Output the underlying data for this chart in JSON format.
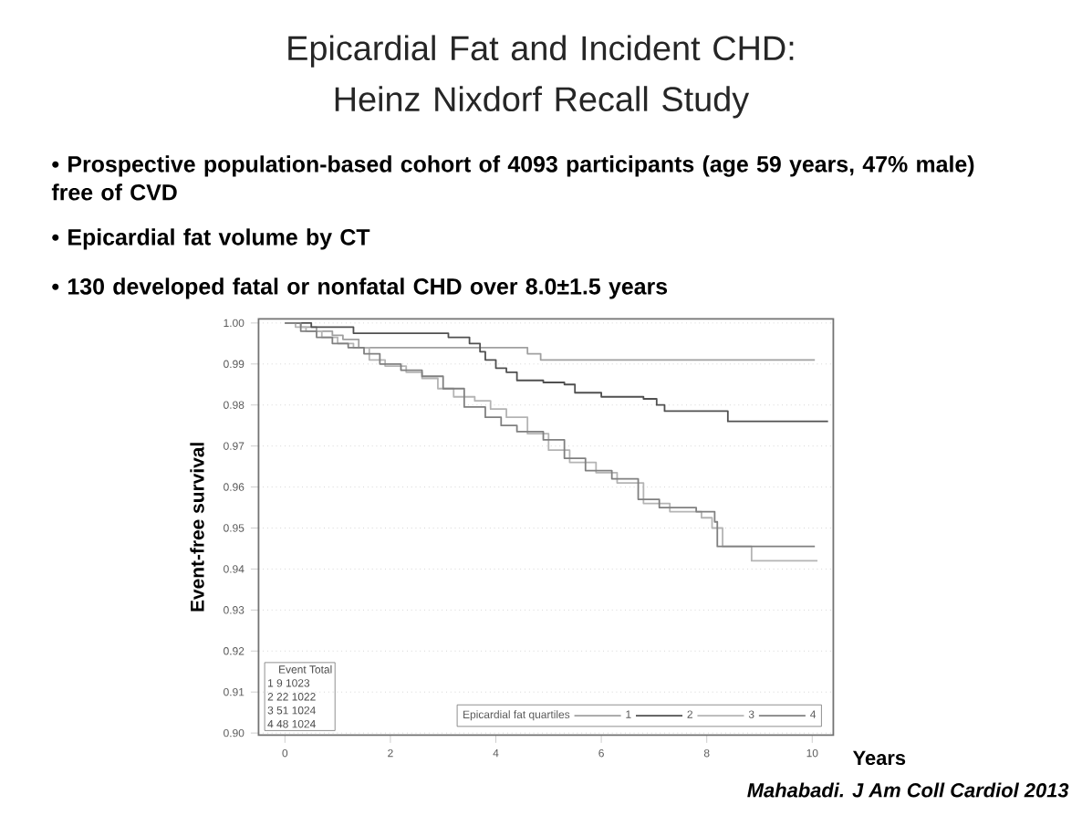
{
  "chart_data": {
    "type": "step",
    "title": "Epicardial Fat and Incident CHD: Heinz Nixdorf Recall Study",
    "xlabel": "Years",
    "ylabel": "Event-free survival",
    "legend_title": "Epicardial fat quartiles",
    "annotations": [
      "• Prospective population-based cohort of 4093 participants (age 59 years, 47% male) free of CVD",
      "• Epicardial fat volume by CT",
      "• 130 developed fatal or nonfatal CHD over 8.0±1.5 years",
      "Event Total",
      "1 9 1023",
      "2 22 1022",
      "3 51 1024",
      "4 48 1024",
      "Mahabadi. J Am Coll Cardiol 2013"
    ],
    "series": [
      {
        "name": "1",
        "color": "#a0a0a0",
        "x": [
          0,
          0.3,
          0.6,
          0.9,
          1.1,
          1.4,
          4.6,
          4.85,
          10.05
        ],
        "values": [
          1.0,
          0.999,
          0.998,
          0.997,
          0.996,
          0.994,
          0.9925,
          0.991,
          0.991
        ]
      },
      {
        "name": "2",
        "color": "#505050",
        "x": [
          0,
          0.5,
          1.3,
          3.1,
          3.5,
          3.7,
          3.8,
          4.0,
          4.2,
          4.4,
          4.9,
          5.3,
          5.5,
          6.0,
          6.8,
          7.05,
          7.2,
          8.4,
          10.3
        ],
        "values": [
          1.0,
          0.999,
          0.9975,
          0.9965,
          0.995,
          0.993,
          0.991,
          0.989,
          0.988,
          0.986,
          0.9855,
          0.985,
          0.983,
          0.982,
          0.9815,
          0.98,
          0.9785,
          0.976,
          0.976
        ]
      },
      {
        "name": "3",
        "color": "#b4b4b4",
        "x": [
          0,
          0.2,
          0.4,
          0.7,
          1.0,
          1.3,
          1.6,
          1.9,
          2.3,
          2.6,
          2.9,
          3.2,
          3.6,
          3.9,
          4.2,
          4.6,
          5.0,
          5.4,
          5.9,
          6.3,
          6.8,
          7.3,
          7.9,
          8.1,
          8.3,
          8.85,
          10.1
        ],
        "values": [
          1.0,
          0.999,
          0.998,
          0.9965,
          0.995,
          0.994,
          0.991,
          0.9895,
          0.988,
          0.9865,
          0.984,
          0.982,
          0.981,
          0.979,
          0.977,
          0.973,
          0.969,
          0.966,
          0.9635,
          0.961,
          0.956,
          0.954,
          0.9525,
          0.95,
          0.9455,
          0.942,
          0.942
        ]
      },
      {
        "name": "4",
        "color": "#808080",
        "x": [
          0,
          0.3,
          0.6,
          0.9,
          1.2,
          1.5,
          1.8,
          2.2,
          2.6,
          3.0,
          3.4,
          3.8,
          4.1,
          4.4,
          4.9,
          5.3,
          5.7,
          6.2,
          6.7,
          7.1,
          7.8,
          8.15,
          8.2,
          10.05
        ],
        "values": [
          1.0,
          0.998,
          0.9965,
          0.995,
          0.994,
          0.9925,
          0.99,
          0.9885,
          0.987,
          0.984,
          0.9795,
          0.977,
          0.975,
          0.9735,
          0.9715,
          0.967,
          0.964,
          0.962,
          0.957,
          0.955,
          0.954,
          0.9515,
          0.9455,
          0.9455
        ]
      }
    ],
    "xlim": [
      -0.5,
      10.4
    ],
    "ylim": [
      0.8995,
      1.001
    ],
    "xticks": [
      0,
      2,
      4,
      6,
      8,
      10
    ],
    "yticks": [
      {
        "value": 0.9,
        "label": "0.90"
      },
      {
        "value": 0.91,
        "label": "0.91"
      },
      {
        "value": 0.92,
        "label": "0.92"
      },
      {
        "value": 0.93,
        "label": "0.93"
      },
      {
        "value": 0.94,
        "label": "0.94"
      },
      {
        "value": 0.95,
        "label": "0.95"
      },
      {
        "value": 0.96,
        "label": "0.96"
      },
      {
        "value": 0.97,
        "label": "0.97"
      },
      {
        "value": 0.98,
        "label": "0.98"
      },
      {
        "value": 0.99,
        "label": "0.99"
      },
      {
        "value": 1.0,
        "label": "1.00"
      }
    ],
    "grid": "y",
    "legend": "bottom right",
    "line_style": "solid",
    "marker": "none"
  }
}
